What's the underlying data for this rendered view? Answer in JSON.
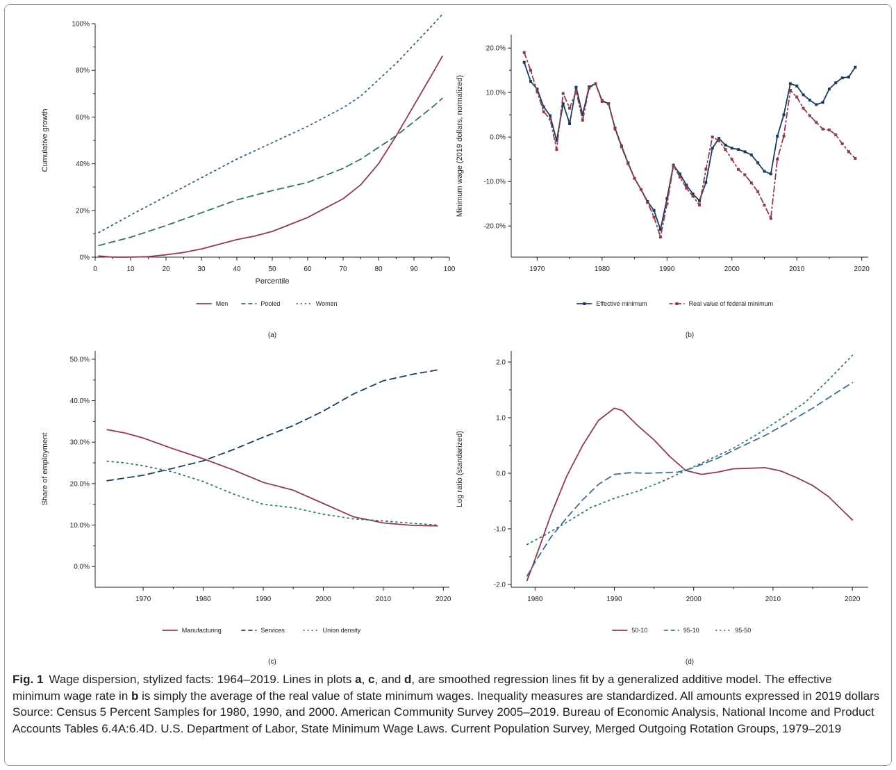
{
  "caption": {
    "fig_label": "Fig. 1",
    "p1": "Wage dispersion, stylized facts: 1964–2019. Lines in plots ",
    "b1": "a",
    "p2": ", ",
    "b2": "c",
    "p3": ", and ",
    "b3": "d",
    "p4": ", are smoothed regression lines fit by a generalized additive model. The effective minimum wage rate in ",
    "b4": "b",
    "p5": " is simply the average of the real value of state minimum wages. Inequality measures are standardized. All amounts expressed in 2019 dollars  Source: Census 5 Percent Samples for 1980, 1990, and 2000. American Community Survey 2005–2019. Bureau of Economic Analysis, National Income and Product Accounts Tables 6.4A:6.4D. U.S. Department of Labor, State Minimum Wage Laws. Current Population Survey, Merged Outgoing Rotation Groups, 1979–2019"
  },
  "colors": {
    "maroon": "#8c3b4e",
    "navy": "#1c3a5c",
    "teal": "#2f7268",
    "blue": "#2f5f86",
    "tealdot": "#2f7a70",
    "blue_dot": "#3f6d95"
  },
  "chart_data": [
    {
      "id": "a",
      "panel_label": "(a)",
      "type": "line",
      "xlabel": "Percentile",
      "ylabel": "Cumulative growth",
      "xlim": [
        0,
        100
      ],
      "ylim": [
        0,
        100
      ],
      "xticks": [
        0,
        10,
        20,
        30,
        40,
        50,
        60,
        70,
        80,
        90,
        100
      ],
      "yticks": [
        0,
        20,
        40,
        60,
        80,
        100
      ],
      "ytick_labels": [
        "0%",
        "20%",
        "40%",
        "60%",
        "80%",
        "100%"
      ],
      "legend_position": "bottom",
      "series": [
        {
          "name": "Men",
          "style": "solid",
          "color": "#8c3b4e",
          "x": [
            1,
            5,
            10,
            15,
            20,
            25,
            30,
            35,
            40,
            45,
            50,
            55,
            60,
            65,
            70,
            75,
            80,
            85,
            90,
            95,
            98
          ],
          "y": [
            0.5,
            0,
            0,
            0.2,
            1,
            2,
            3.5,
            5.5,
            7.5,
            9,
            11,
            14,
            17,
            21,
            25,
            31,
            40,
            52,
            65,
            78,
            86
          ]
        },
        {
          "name": "Pooled",
          "style": "dash",
          "color": "#2f7268",
          "x": [
            1,
            10,
            20,
            30,
            40,
            50,
            60,
            70,
            75,
            80,
            85,
            90,
            95,
            98
          ],
          "y": [
            5,
            8.5,
            13.5,
            19,
            24.5,
            28.5,
            32,
            38,
            42,
            47,
            52,
            58,
            64,
            68
          ]
        },
        {
          "name": "Women",
          "style": "dot",
          "color": "#2f5f86",
          "x": [
            1,
            10,
            20,
            30,
            40,
            50,
            60,
            70,
            75,
            80,
            85,
            90,
            95,
            98
          ],
          "y": [
            10.5,
            18,
            26,
            34,
            42,
            49,
            56,
            64,
            69,
            76,
            83,
            91,
            99,
            104
          ]
        }
      ]
    },
    {
      "id": "b",
      "panel_label": "(b)",
      "type": "line",
      "ylabel": "Minimum wage (2019 dollars, normalized)",
      "xlim": [
        1966,
        2021
      ],
      "ylim": [
        -27,
        23
      ],
      "xticks": [
        1970,
        1980,
        1990,
        2000,
        2010,
        2020
      ],
      "yticks": [
        -20,
        -10,
        0,
        10,
        20
      ],
      "ytick_labels": [
        "-20.0%",
        "-10.0%",
        "0.0%",
        "10.0%",
        "20.0%"
      ],
      "legend_position": "bottom",
      "series": [
        {
          "name": "Effective minimum",
          "style": "solid",
          "color": "#1c3a5c",
          "markers": true,
          "x": [
            1968,
            1969,
            1970,
            1971,
            1972,
            1973,
            1974,
            1975,
            1976,
            1977,
            1978,
            1979,
            1980,
            1981,
            1982,
            1983,
            1984,
            1985,
            1986,
            1987,
            1988,
            1989,
            1990,
            1991,
            1992,
            1993,
            1994,
            1995,
            1996,
            1997,
            1998,
            1999,
            2000,
            2001,
            2002,
            2003,
            2004,
            2005,
            2006,
            2007,
            2008,
            2009,
            2010,
            2011,
            2012,
            2013,
            2014,
            2015,
            2016,
            2017,
            2018,
            2019
          ],
          "y": [
            16.8,
            12.5,
            10.8,
            6.8,
            4.8,
            -0.8,
            7.5,
            3,
            11.2,
            5,
            11.3,
            12,
            8.2,
            7.5,
            2,
            -2,
            -5.8,
            -9.3,
            -11.8,
            -14.5,
            -16.5,
            -20.8,
            -13.8,
            -6.3,
            -8.3,
            -10.8,
            -12.8,
            -14.3,
            -10.2,
            -2.5,
            -0.3,
            -1.8,
            -2.5,
            -2.8,
            -3.3,
            -4,
            -5.8,
            -7.7,
            -8.3,
            0.2,
            5,
            12,
            11.5,
            9.5,
            8.3,
            7.3,
            7.8,
            10.8,
            12.2,
            13.3,
            13.5,
            15.7
          ]
        },
        {
          "name": "Real value of federal minimum",
          "style": "dashdot",
          "color": "#8c3b4e",
          "markers": true,
          "x": [
            1968,
            1969,
            1970,
            1971,
            1972,
            1973,
            1974,
            1975,
            1976,
            1977,
            1978,
            1979,
            1980,
            1981,
            1982,
            1983,
            1984,
            1985,
            1986,
            1987,
            1988,
            1989,
            1990,
            1991,
            1992,
            1993,
            1994,
            1995,
            1996,
            1997,
            1998,
            1999,
            2000,
            2001,
            2002,
            2003,
            2004,
            2005,
            2006,
            2007,
            2008,
            2009,
            2010,
            2011,
            2012,
            2013,
            2014,
            2015,
            2016,
            2017,
            2018,
            2019
          ],
          "y": [
            19,
            15,
            10.2,
            5.7,
            4,
            -2.8,
            9.8,
            6.5,
            10.3,
            3.8,
            11,
            12,
            8,
            7.5,
            1.8,
            -2.2,
            -6,
            -9.3,
            -11.8,
            -14.7,
            -18,
            -22.5,
            -15,
            -6.5,
            -9,
            -11.5,
            -13.3,
            -15.3,
            -7.2,
            0,
            -0.8,
            -2.8,
            -5,
            -7.3,
            -8.5,
            -10.3,
            -12.3,
            -15.3,
            -18.3,
            -5,
            0.2,
            10.5,
            9,
            6.5,
            4.8,
            3.3,
            1.8,
            1.6,
            0.5,
            -1.5,
            -3.3,
            -4.8
          ]
        }
      ]
    },
    {
      "id": "c",
      "panel_label": "(c)",
      "type": "line",
      "ylabel": "Share of employment",
      "xlim": [
        1962,
        2021
      ],
      "ylim": [
        -5,
        52
      ],
      "xticks": [
        1970,
        1980,
        1990,
        2000,
        2010,
        2020
      ],
      "yticks": [
        0,
        10,
        20,
        30,
        40,
        50
      ],
      "ytick_labels": [
        "0.0%",
        "10.0%",
        "20.0%",
        "30.0%",
        "40.0%",
        "50.0%"
      ],
      "legend_position": "bottom",
      "series": [
        {
          "name": "Manufacturing",
          "style": "solid",
          "color": "#8c3b4e",
          "x": [
            1964,
            1967,
            1970,
            1975,
            1980,
            1985,
            1990,
            1995,
            2000,
            2005,
            2010,
            2015,
            2019
          ],
          "y": [
            33,
            32.2,
            31,
            28.4,
            26,
            23.3,
            20.3,
            18.4,
            15.2,
            12,
            10.5,
            9.9,
            9.8
          ]
        },
        {
          "name": "Services",
          "style": "dash",
          "color": "#1c3a5c",
          "x": [
            1964,
            1970,
            1975,
            1980,
            1985,
            1990,
            1995,
            2000,
            2005,
            2010,
            2015,
            2019
          ],
          "y": [
            20.7,
            22,
            23.7,
            25.5,
            28.2,
            31.2,
            34,
            37.5,
            41.6,
            44.8,
            46.4,
            47.4
          ]
        },
        {
          "name": "Union density",
          "style": "dot",
          "color": "#2f7a70",
          "x": [
            1964,
            1967,
            1970,
            1975,
            1980,
            1985,
            1990,
            1995,
            2000,
            2005,
            2010,
            2015,
            2019
          ],
          "y": [
            25.4,
            25,
            24.3,
            22.8,
            20.5,
            17.5,
            15,
            14.2,
            12.6,
            11.5,
            11,
            10.4,
            10
          ]
        }
      ]
    },
    {
      "id": "d",
      "panel_label": "(d)",
      "type": "line",
      "ylabel": "Log ratio (standarized)",
      "xlim": [
        1977,
        2022
      ],
      "ylim": [
        -2.05,
        2.2
      ],
      "xticks": [
        1980,
        1990,
        2000,
        2010,
        2020
      ],
      "yticks": [
        -2,
        -1,
        0,
        1,
        2
      ],
      "ytick_labels": [
        "-2.0",
        "-1.0",
        "0.0",
        "1.0",
        "2.0"
      ],
      "legend_position": "bottom",
      "series": [
        {
          "name": "50-10",
          "style": "solid",
          "color": "#8c3b4e",
          "x": [
            1979,
            1980,
            1982,
            1984,
            1986,
            1988,
            1990,
            1991,
            1993,
            1995,
            1997,
            1999,
            2001,
            2003,
            2005,
            2007,
            2009,
            2011,
            2013,
            2015,
            2017,
            2019,
            2020
          ],
          "y": [
            -1.93,
            -1.55,
            -0.75,
            -0.05,
            0.5,
            0.95,
            1.17,
            1.13,
            0.85,
            0.6,
            0.3,
            0.05,
            -0.02,
            0.02,
            0.08,
            0.09,
            0.1,
            0.04,
            -0.08,
            -0.22,
            -0.42,
            -0.7,
            -0.84
          ]
        },
        {
          "name": "95-10",
          "style": "dash",
          "color": "#3f6d95",
          "x": [
            1979,
            1980,
            1982,
            1984,
            1986,
            1988,
            1990,
            1992,
            1994,
            1996,
            1998,
            2000,
            2003,
            2006,
            2009,
            2012,
            2015,
            2018,
            2020
          ],
          "y": [
            -1.85,
            -1.6,
            -1.15,
            -0.8,
            -0.48,
            -0.2,
            -0.02,
            0.01,
            0.0,
            0.01,
            0.02,
            0.1,
            0.27,
            0.48,
            0.68,
            0.92,
            1.17,
            1.45,
            1.63
          ]
        },
        {
          "name": "95-50",
          "style": "dot",
          "color": "#2f7a70",
          "x": [
            1979,
            1981,
            1984,
            1987,
            1990,
            1993,
            1996,
            1999,
            2002,
            2005,
            2008,
            2011,
            2014,
            2017,
            2020
          ],
          "y": [
            -1.28,
            -1.13,
            -0.88,
            -0.62,
            -0.45,
            -0.32,
            -0.15,
            0.05,
            0.25,
            0.45,
            0.7,
            0.98,
            1.27,
            1.68,
            2.12
          ]
        }
      ]
    }
  ]
}
